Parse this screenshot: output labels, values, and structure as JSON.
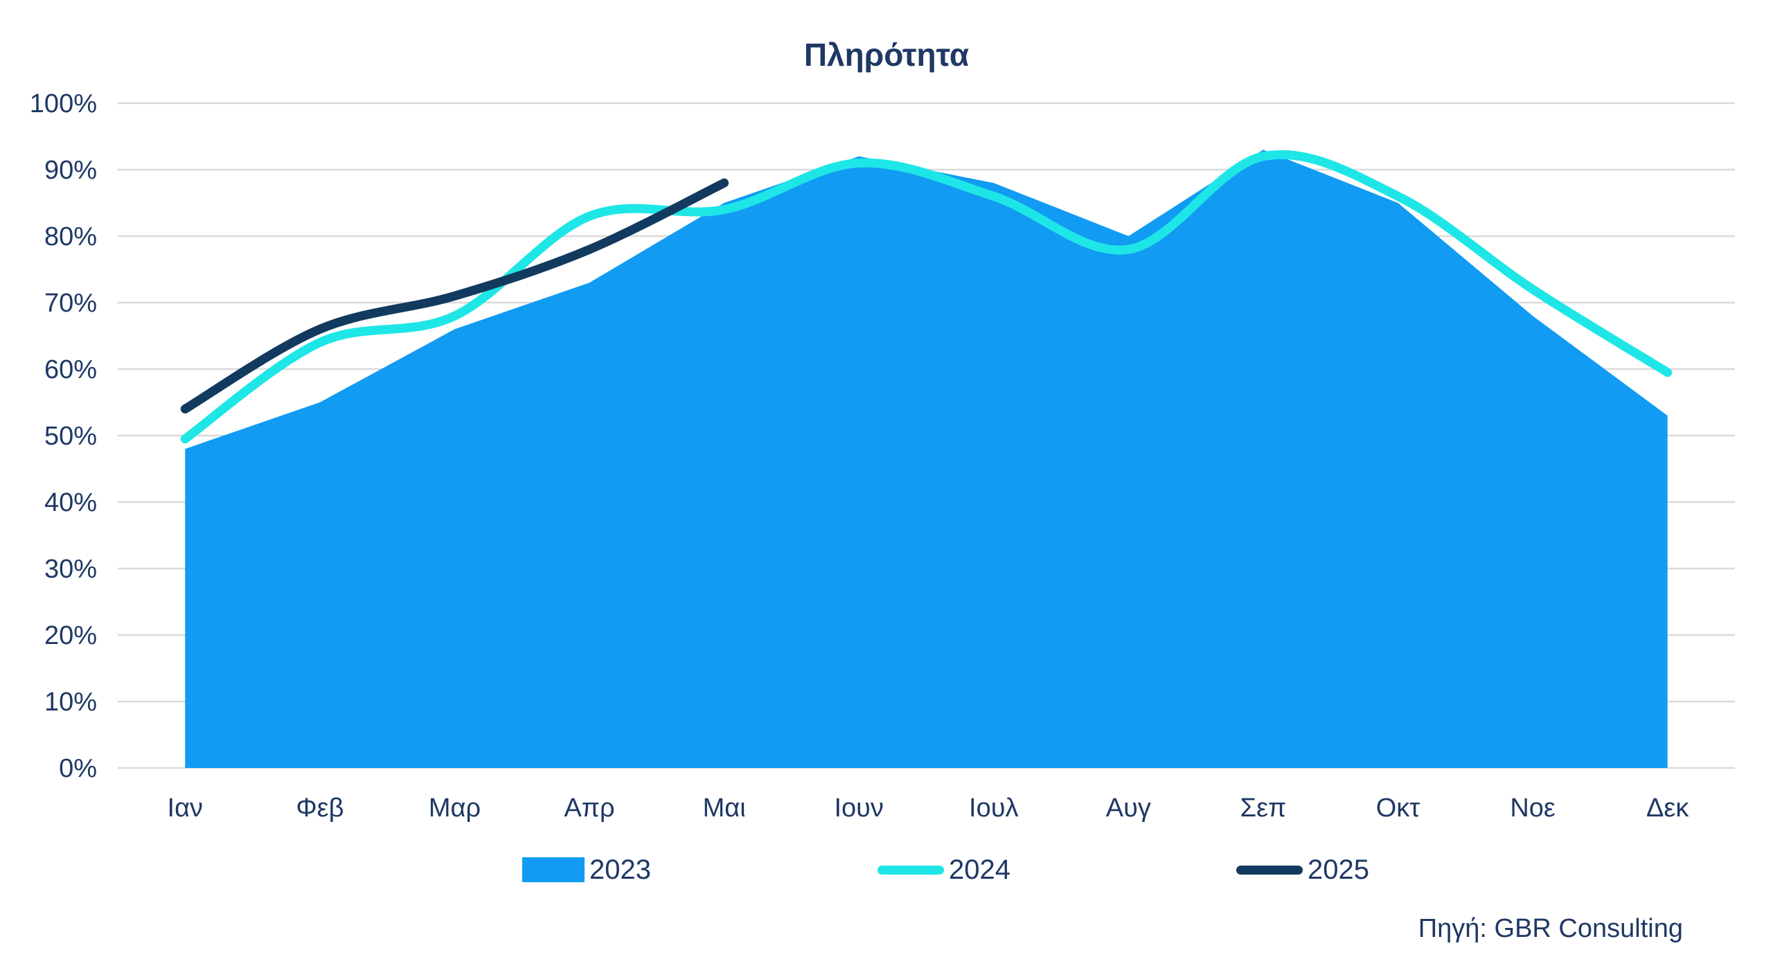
{
  "title": "Πληρότητα",
  "source": "Πηγή: GBR Consulting",
  "colors": {
    "text": "#1F3864",
    "grid": "#D9D9D9",
    "background": "#FFFFFF",
    "series_2023": "#119BF2",
    "series_2024": "#1FE6E6",
    "series_2025": "#123A5F"
  },
  "chart_data": {
    "type": "area",
    "title": "Πληρότητα",
    "xlabel": "",
    "ylabel": "",
    "grid": true,
    "legend_position": "bottom",
    "categories": [
      "Ιαν",
      "Φεβ",
      "Μαρ",
      "Απρ",
      "Μαι",
      "Ιουν",
      "Ιουλ",
      "Αυγ",
      "Σεπ",
      "Οκτ",
      "Νοε",
      "Δεκ"
    ],
    "y_axis": {
      "min": 0,
      "max": 100,
      "step": 10,
      "unit": "%",
      "tick_labels": [
        "0%",
        "10%",
        "20%",
        "30%",
        "40%",
        "50%",
        "60%",
        "70%",
        "80%",
        "90%",
        "100%"
      ]
    },
    "series": [
      {
        "name": "2023",
        "type": "area",
        "smooth": false,
        "color": "#119BF2",
        "values": [
          48,
          55,
          66,
          73,
          85,
          92,
          88,
          80,
          93,
          85,
          68,
          53
        ]
      },
      {
        "name": "2024",
        "type": "line",
        "smooth": true,
        "color": "#1FE6E6",
        "values": [
          49.5,
          64,
          68,
          83,
          84,
          91,
          86,
          78,
          92,
          86,
          72,
          59.5
        ]
      },
      {
        "name": "2025",
        "type": "line",
        "smooth": true,
        "color": "#123A5F",
        "values": [
          54,
          66,
          71,
          78,
          88
        ]
      }
    ]
  }
}
